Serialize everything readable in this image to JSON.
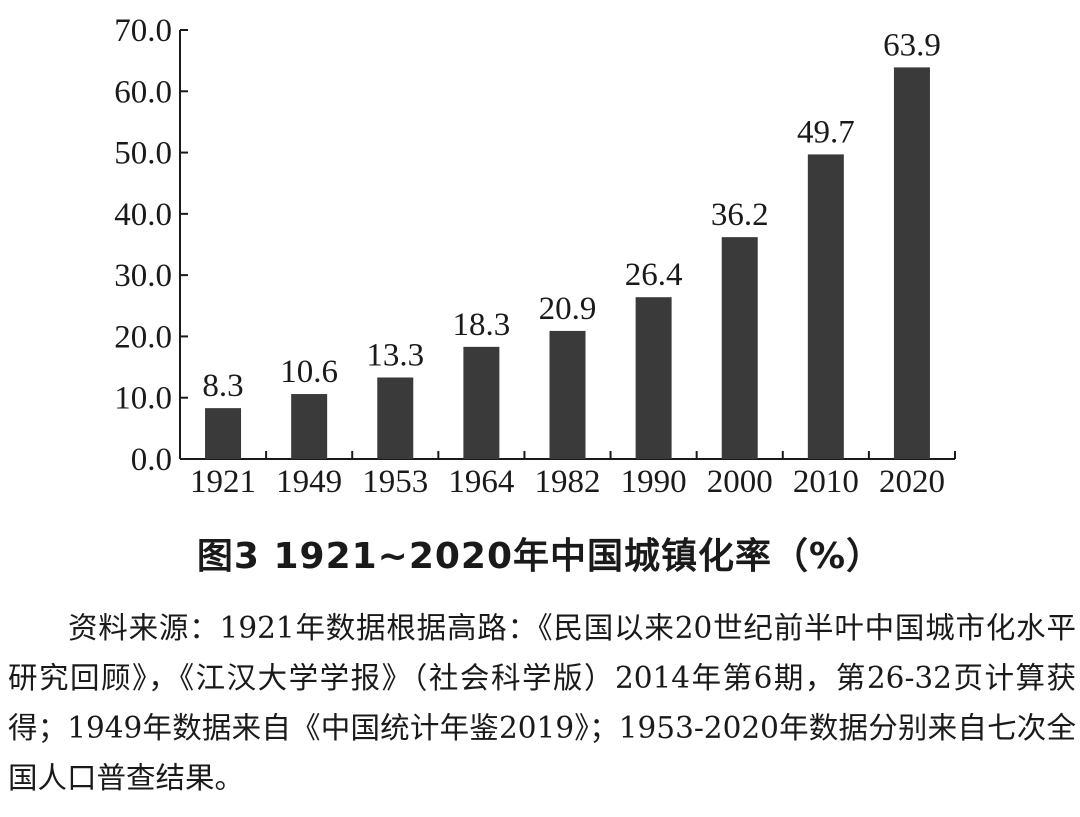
{
  "chart_data": {
    "type": "bar",
    "categories": [
      "1921",
      "1949",
      "1953",
      "1964",
      "1982",
      "1990",
      "2000",
      "2010",
      "2020"
    ],
    "values": [
      8.3,
      10.6,
      13.3,
      18.3,
      20.9,
      26.4,
      36.2,
      49.7,
      63.9
    ],
    "data_labels": [
      "8.3",
      "10.6",
      "13.3",
      "18.3",
      "20.9",
      "26.4",
      "36.2",
      "49.7",
      "63.9"
    ],
    "y_ticks": [
      "0.0",
      "10.0",
      "20.0",
      "30.0",
      "40.0",
      "50.0",
      "60.0",
      "70.0"
    ],
    "ylim": [
      0,
      70
    ],
    "title": "图3  1921~2020年中国城镇化率（%）",
    "xlabel": "",
    "ylabel": "",
    "bar_color": "#3a3a3a",
    "grid": false,
    "legend": "none"
  },
  "source_note": "资料来源：1921年数据根据高路：《民国以来20世纪前半叶中国城市化水平研究回顾》，《江汉大学学报》（社会科学版）2014年第6期，第26-32页计算获得；1949年数据来自《中国统计年鉴2019》；1953-2020年数据分别来自七次全国人口普查结果。"
}
